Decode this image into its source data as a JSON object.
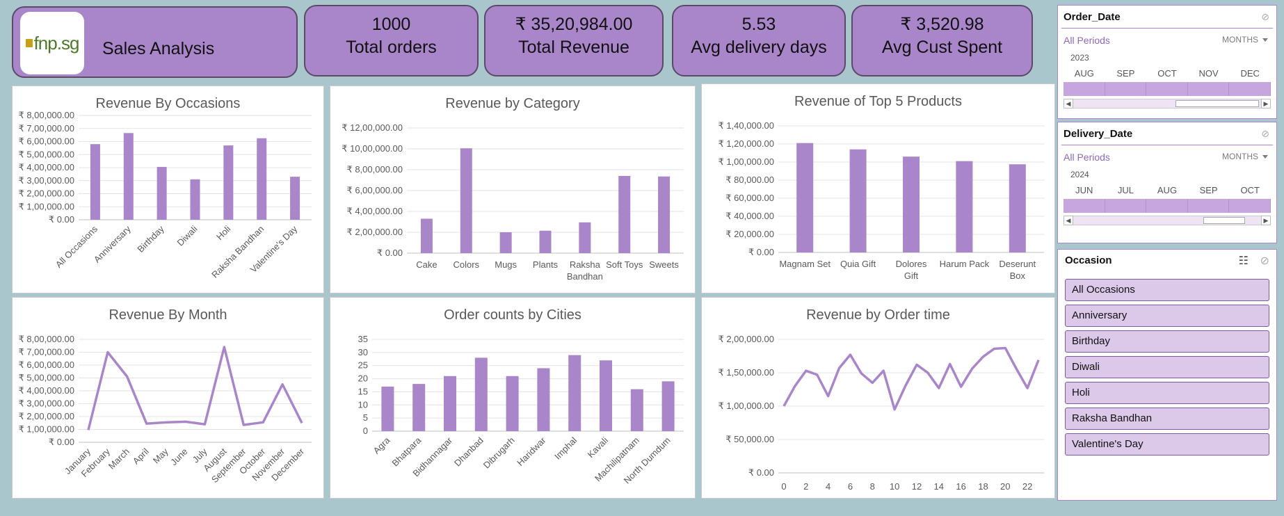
{
  "header": {
    "logo_text": "fnp.sg",
    "title": "Sales Analysis"
  },
  "kpis": [
    {
      "value": "1000",
      "label": "Total orders"
    },
    {
      "value": "₹ 35,20,984.00",
      "label": "Total Revenue"
    },
    {
      "value": "5.53",
      "label": "Avg delivery days"
    },
    {
      "value": "₹ 3,520.98",
      "label": "Avg Cust Spent"
    }
  ],
  "colors": {
    "accent": "#a985c9",
    "bar": "#a985c9",
    "background": "#a9c6cc"
  },
  "order_date_slicer": {
    "title": "Order_Date",
    "all_periods": "All Periods",
    "level": "MONTHS",
    "year": "2023",
    "months": [
      "AUG",
      "SEP",
      "OCT",
      "NOV",
      "DEC"
    ]
  },
  "delivery_date_slicer": {
    "title": "Delivery_Date",
    "all_periods": "All Periods",
    "level": "MONTHS",
    "year": "2024",
    "months": [
      "JUN",
      "JUL",
      "AUG",
      "SEP",
      "OCT"
    ]
  },
  "occasion_slicer": {
    "title": "Occasion",
    "items": [
      "All Occasions",
      "Anniversary",
      "Birthday",
      "Diwali",
      "Holi",
      "Raksha Bandhan",
      "Valentine's Day"
    ]
  },
  "chart_data": [
    {
      "id": "occasions",
      "type": "bar",
      "title": "Revenue By Occasions",
      "categories": [
        "All Occasions",
        "Anniversary",
        "Birthday",
        "Diwali",
        "Holi",
        "Raksha Bandhan",
        "Valentine's Day"
      ],
      "values": [
        580000,
        665000,
        405000,
        310000,
        570000,
        625000,
        330000
      ],
      "y_ticks": [
        "₹ 0.00",
        "₹ 1,00,000.00",
        "₹ 2,00,000.00",
        "₹ 3,00,000.00",
        "₹ 4,00,000.00",
        "₹ 5,00,000.00",
        "₹ 6,00,000.00",
        "₹ 7,00,000.00",
        "₹ 8,00,000.00"
      ],
      "ylim": [
        0,
        800000
      ],
      "grid": true
    },
    {
      "id": "category",
      "type": "bar",
      "title": "Revenue by Category",
      "categories": [
        "Cake",
        "Colors",
        "Mugs",
        "Plants",
        "Raksha Bandhan",
        "Soft Toys",
        "Sweets"
      ],
      "values": [
        330000,
        1005000,
        200000,
        215000,
        295000,
        740000,
        735000
      ],
      "y_ticks": [
        "₹ 0.00",
        "₹ 2,00,000.00",
        "₹ 4,00,000.00",
        "₹ 6,00,000.00",
        "₹ 8,00,000.00",
        "₹ 10,00,000.00",
        "₹ 12,00,000.00"
      ],
      "ylim": [
        0,
        1200000
      ],
      "grid": true
    },
    {
      "id": "top5",
      "type": "bar",
      "title": "Revenue of Top 5 Products",
      "categories": [
        "Magnam Set",
        "Quia Gift",
        "Dolores Gift",
        "Harum Pack",
        "Deserunt Box"
      ],
      "values": [
        121000,
        114000,
        106000,
        101000,
        97500
      ],
      "y_ticks": [
        "₹ 0.00",
        "₹ 20,000.00",
        "₹ 40,000.00",
        "₹ 60,000.00",
        "₹ 80,000.00",
        "₹ 1,00,000.00",
        "₹ 1,20,000.00",
        "₹ 1,40,000.00"
      ],
      "ylim": [
        0,
        140000
      ],
      "grid": true
    },
    {
      "id": "month",
      "type": "line",
      "title": "Revenue By Month",
      "categories": [
        "January",
        "February",
        "March",
        "April",
        "May",
        "June",
        "July",
        "August",
        "September",
        "October",
        "November",
        "December"
      ],
      "values": [
        95000,
        700000,
        510000,
        145000,
        155000,
        160000,
        140000,
        740000,
        135000,
        155000,
        450000,
        150000
      ],
      "y_ticks": [
        "₹ 0.00",
        "₹ 1,00,000.00",
        "₹ 2,00,000.00",
        "₹ 3,00,000.00",
        "₹ 4,00,000.00",
        "₹ 5,00,000.00",
        "₹ 6,00,000.00",
        "₹ 7,00,000.00",
        "₹ 8,00,000.00"
      ],
      "ylim": [
        0,
        800000
      ],
      "grid": true
    },
    {
      "id": "cities",
      "type": "bar",
      "title": "Order counts by Cities",
      "categories": [
        "Agra",
        "Bhatpara",
        "Bidhannagar",
        "Dhanbad",
        "Dibrugarh",
        "Haridwar",
        "Imphal",
        "Kavali",
        "Machilipatnam",
        "North Dumdum"
      ],
      "values": [
        17,
        18,
        21,
        28,
        21,
        24,
        29,
        27,
        16,
        19
      ],
      "y_ticks": [
        "0",
        "5",
        "10",
        "15",
        "20",
        "25",
        "30",
        "35"
      ],
      "ylim": [
        0,
        35
      ],
      "grid": true
    },
    {
      "id": "ordertime",
      "type": "line",
      "title": "Revenue by Order time",
      "x": [
        0,
        1,
        2,
        3,
        4,
        5,
        6,
        7,
        8,
        9,
        10,
        11,
        12,
        13,
        14,
        15,
        16,
        17,
        18,
        19,
        20,
        21,
        22,
        23
      ],
      "x_tick_labels": [
        "0",
        "2",
        "4",
        "6",
        "8",
        "10",
        "12",
        "14",
        "16",
        "18",
        "20",
        "22"
      ],
      "values": [
        100000,
        130000,
        153000,
        147000,
        115000,
        157000,
        177000,
        149000,
        135000,
        153000,
        95000,
        131000,
        162000,
        150000,
        127000,
        163000,
        129000,
        156000,
        174000,
        186000,
        187000,
        156000,
        127000,
        169000
      ],
      "y_ticks": [
        "₹ 0.00",
        "₹ 50,000.00",
        "₹ 1,00,000.00",
        "₹ 1,50,000.00",
        "₹ 2,00,000.00"
      ],
      "ylim": [
        0,
        200000
      ],
      "grid": true
    }
  ]
}
